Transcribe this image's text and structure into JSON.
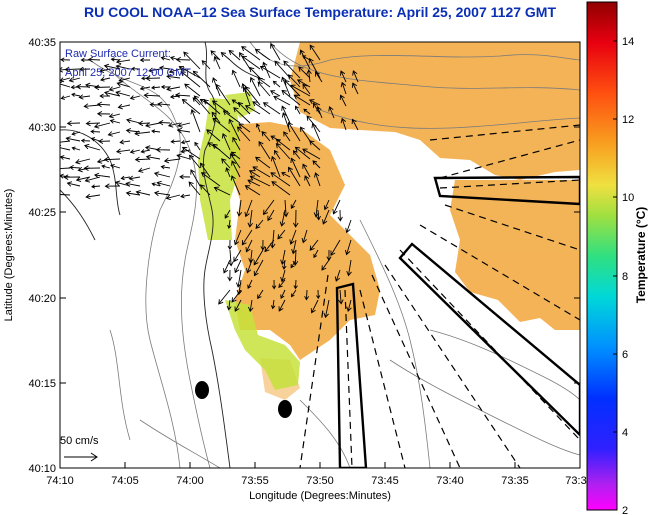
{
  "title": "RU COOL  NOAA–12  Sea Surface Temperature:  April 25, 2007 1127 GMT",
  "annotations": {
    "current_label": "Raw Surface Current:",
    "current_date": "April 25, 2007 12:00 GMT",
    "scale_label": "50 cm/s"
  },
  "axes": {
    "xlabel": "Longitude (Degrees:Minutes)",
    "ylabel": "Latitude (Degrees:Minutes)",
    "xticks": [
      "74:10",
      "74:05",
      "74:00",
      "73:55",
      "73:50",
      "73:45",
      "73:40",
      "73:35",
      "73:3"
    ],
    "yticks": [
      "40:35",
      "40:30",
      "40:25",
      "40:20",
      "40:15",
      "40:10"
    ]
  },
  "colorbar": {
    "label": "Temperature (°C)",
    "ticks": [
      "14",
      "12",
      "10",
      "8",
      "6",
      "4",
      "2"
    ],
    "range": [
      2,
      15
    ]
  },
  "colors": {
    "title": "#0a2fb4",
    "annotation": "#1f2bb0",
    "sst_warm": "#f2a63a",
    "sst_cool": "#c8e23c"
  }
}
